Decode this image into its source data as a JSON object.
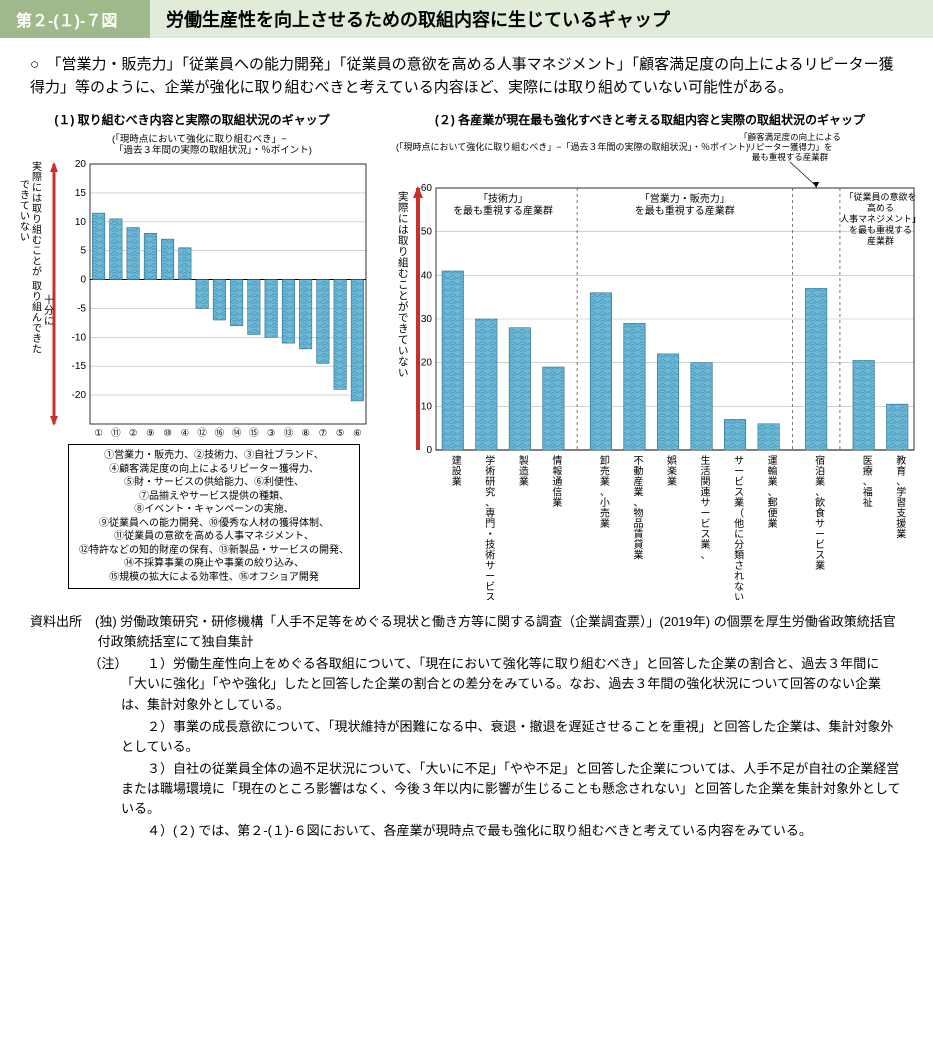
{
  "header": {
    "badge": "第２-(１)-７図",
    "title": "労働生産性を向上させるための取組内容に生じているギャップ"
  },
  "intro": "○　「営業力・販売力」「従業員への能力開発」「従業員の意欲を高める人事マネジメント」「顧客満足度の向上によるリピーター獲得力」等のように、企業が強化に取り組むべきと考えている内容ほど、実際には取り組めていない可能性がある。",
  "chart1": {
    "title": "(１) 取り組むべき内容と実際の取組状況のギャップ",
    "subtitle": "(「現時点において強化に取り組むべき」−「過去３年間の実際の取組状況」・％ポイント)",
    "ylim": [
      -25,
      20
    ],
    "yticks": [
      -20,
      -15,
      -10,
      -5,
      0,
      5,
      10,
      15,
      20
    ],
    "bar_color": "#6fb8d6",
    "pattern_color": "#4a9cc0",
    "grid_color": "#b8b8b8",
    "axis_color": "#000000",
    "y_axis_label_top": "実際には取り組むことができていない",
    "y_axis_label_bottom": "十分に取り組んできた",
    "categories": [
      "①",
      "⑪",
      "②",
      "⑨",
      "⑩",
      "④",
      "⑫",
      "⑯",
      "⑭",
      "⑮",
      "③",
      "⑬",
      "⑧",
      "⑦",
      "⑤",
      "⑥"
    ],
    "values": [
      11.5,
      10.5,
      9,
      8,
      7,
      5.5,
      -5,
      -7,
      -8,
      -9.5,
      -10,
      -11,
      -12,
      -14.5,
      -19,
      -21
    ],
    "legend_lines": [
      "①営業力・販売力、②技術力、③自社ブランド、",
      "④顧客満足度の向上によるリピーター獲得力、",
      "⑤財・サービスの供給能力、⑥利便性、",
      "⑦品揃えやサービス提供の種類、",
      "⑧イベント・キャンペーンの実施、",
      "⑨従業員への能力開発、⑩優秀な人材の獲得体制、",
      "⑪従業員の意欲を高める人事マネジメント、",
      "⑫特許などの知的財産の保有、⑬新製品・サービスの開発、",
      "⑭不採算事業の廃止や事業の絞り込み、",
      "⑮規模の拡大による効率性、⑯オフショア開発"
    ]
  },
  "chart2": {
    "title": "(２) 各産業が現在最も強化すべきと考える取組内容と実際の取組状況のギャップ",
    "subtitle": "(「現時点において強化に取り組むべき」−「過去３年間の実際の取組状況」・％ポイント)",
    "annotation": "「顧客満足度の向上によるリピーター獲得力」を最も重視する産業群",
    "ylim": [
      0,
      60
    ],
    "yticks": [
      0,
      10,
      20,
      30,
      40,
      50,
      60
    ],
    "bar_color": "#6fb8d6",
    "pattern_color": "#4a9cc0",
    "grid_color": "#b8b8b8",
    "axis_color": "#000000",
    "y_axis_label": "実際には取り組むことができていない",
    "groups": [
      {
        "label": "「技術力」を最も重視する産業群",
        "count": 4
      },
      {
        "label": "「営業力・販売力」を最も重視する産業群",
        "count": 6
      },
      {
        "label_special": true,
        "count": 1
      },
      {
        "label": "「従業員の意欲を高める人事マネジメント」を最も重視する産業群",
        "count": 2
      }
    ],
    "categories": [
      "建設業",
      "学術研究、専門・技術サービス業",
      "製造業",
      "情報通信業",
      "卸売業、小売業",
      "不動産業、物品賃貸業",
      "娯楽業",
      "生活関連サービス業、",
      "サービス業（他に分類されないもの）",
      "運輸業、郵便業",
      "宿泊業、飲食サービス業",
      "医療、福祉",
      "教育、学習支援業"
    ],
    "values": [
      41,
      30,
      28,
      19,
      36,
      29,
      22,
      20,
      7,
      6,
      37,
      20.5,
      10.5
    ]
  },
  "footer": {
    "source": "資料出所　(独) 労働政策研究・研修機構「人手不足等をめぐる現状と働き方等に関する調査（企業調査票）」(2019年) の個票を厚生労働省政策統括官付政策統括室にて独自集計",
    "notes": [
      "１）労働生産性向上をめぐる各取組について、「現在において強化等に取り組むべき」と回答した企業の割合と、過去３年間に「大いに強化」「やや強化」したと回答した企業の割合との差分をみている。なお、過去３年間の強化状況について回答のない企業は、集計対象外としている。",
      "２）事業の成長意欲について、「現状維持が困難になる中、衰退・撤退を遅延させることを重視」と回答した企業は、集計対象外としている。",
      "３）自社の従業員全体の過不足状況について、「大いに不足」「やや不足」と回答した企業については、人手不足が自社の企業経営または職場環境に「現在のところ影響はなく、今後３年以内に影響が生じることも懸念されない」と回答した企業を集計対象外としている。",
      "４）(２) では、第２-(１)-６図において、各産業が現時点で最も強化に取り組むべきと考えている内容をみている。"
    ]
  }
}
